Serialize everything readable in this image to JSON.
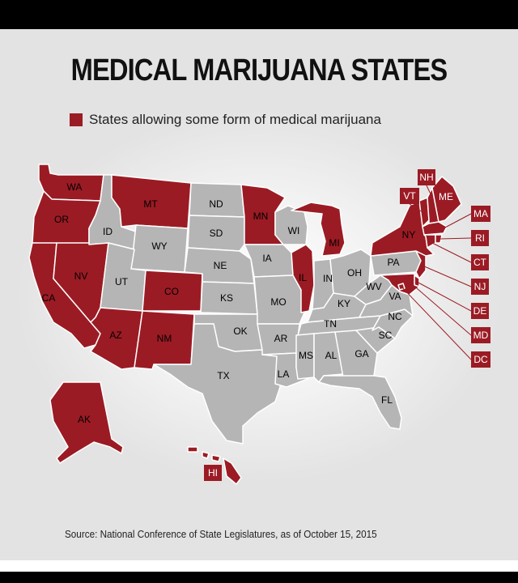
{
  "title": "MEDICAL MARIJUANA STATES",
  "legend": {
    "label": "States allowing some form of medical marijuana",
    "color": "#9b1b24"
  },
  "colors": {
    "allowed": "#9b1b24",
    "not_allowed": "#b5b5b6",
    "border": "#ffffff"
  },
  "states": [
    {
      "abbr": "WA",
      "allowed": true
    },
    {
      "abbr": "OR",
      "allowed": true
    },
    {
      "abbr": "CA",
      "allowed": true
    },
    {
      "abbr": "NV",
      "allowed": true
    },
    {
      "abbr": "ID",
      "allowed": false
    },
    {
      "abbr": "MT",
      "allowed": true
    },
    {
      "abbr": "WY",
      "allowed": false
    },
    {
      "abbr": "UT",
      "allowed": false
    },
    {
      "abbr": "CO",
      "allowed": true
    },
    {
      "abbr": "AZ",
      "allowed": true
    },
    {
      "abbr": "NM",
      "allowed": true
    },
    {
      "abbr": "ND",
      "allowed": false
    },
    {
      "abbr": "SD",
      "allowed": false
    },
    {
      "abbr": "NE",
      "allowed": false
    },
    {
      "abbr": "KS",
      "allowed": false
    },
    {
      "abbr": "OK",
      "allowed": false
    },
    {
      "abbr": "TX",
      "allowed": false
    },
    {
      "abbr": "MN",
      "allowed": true
    },
    {
      "abbr": "IA",
      "allowed": false
    },
    {
      "abbr": "MO",
      "allowed": false
    },
    {
      "abbr": "AR",
      "allowed": false
    },
    {
      "abbr": "LA",
      "allowed": false
    },
    {
      "abbr": "WI",
      "allowed": false
    },
    {
      "abbr": "IL",
      "allowed": true
    },
    {
      "abbr": "MI",
      "allowed": true
    },
    {
      "abbr": "IN",
      "allowed": false
    },
    {
      "abbr": "OH",
      "allowed": false
    },
    {
      "abbr": "KY",
      "allowed": false
    },
    {
      "abbr": "TN",
      "allowed": false
    },
    {
      "abbr": "MS",
      "allowed": false
    },
    {
      "abbr": "AL",
      "allowed": false
    },
    {
      "abbr": "GA",
      "allowed": false
    },
    {
      "abbr": "FL",
      "allowed": false
    },
    {
      "abbr": "SC",
      "allowed": false
    },
    {
      "abbr": "NC",
      "allowed": false
    },
    {
      "abbr": "VA",
      "allowed": false
    },
    {
      "abbr": "WV",
      "allowed": false
    },
    {
      "abbr": "PA",
      "allowed": false
    },
    {
      "abbr": "NY",
      "allowed": true
    },
    {
      "abbr": "VT",
      "allowed": true
    },
    {
      "abbr": "NH",
      "allowed": true
    },
    {
      "abbr": "ME",
      "allowed": true
    },
    {
      "abbr": "MA",
      "allowed": true
    },
    {
      "abbr": "RI",
      "allowed": true
    },
    {
      "abbr": "CT",
      "allowed": true
    },
    {
      "abbr": "NJ",
      "allowed": true
    },
    {
      "abbr": "DE",
      "allowed": true
    },
    {
      "abbr": "MD",
      "allowed": true
    },
    {
      "abbr": "DC",
      "allowed": true
    },
    {
      "abbr": "AK",
      "allowed": true
    },
    {
      "abbr": "HI",
      "allowed": true
    }
  ],
  "source": "Source: National Conference of State Legislatures, as of October 15, 2015"
}
